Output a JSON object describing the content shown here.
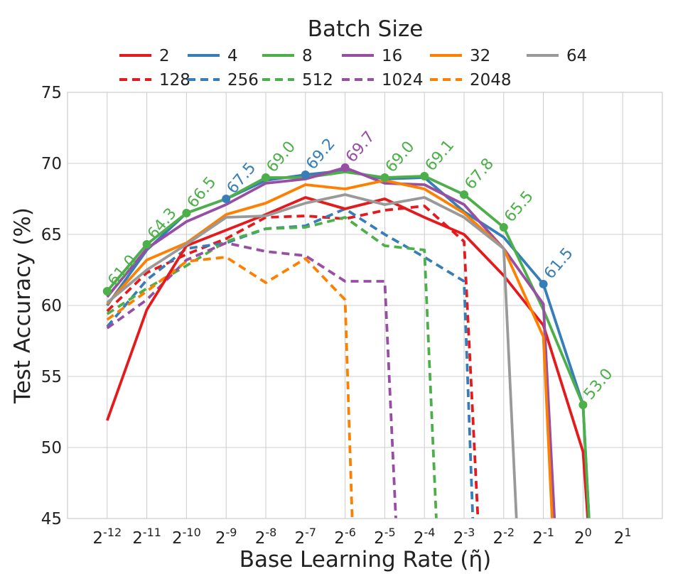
{
  "chart_data": {
    "type": "line",
    "title": "",
    "xlabel": "Base Learning Rate (η̃)",
    "ylabel": "Test Accuracy (%)",
    "ylim": [
      45,
      75
    ],
    "yticks": [
      45,
      50,
      55,
      60,
      65,
      70,
      75
    ],
    "xlim": [
      -13,
      2
    ],
    "x_note": "x values are log2 of the base learning rate",
    "xticks": [
      {
        "x": -12,
        "base": "2",
        "exp": "-12"
      },
      {
        "x": -11,
        "base": "2",
        "exp": "-11"
      },
      {
        "x": -10,
        "base": "2",
        "exp": "-10"
      },
      {
        "x": -9,
        "base": "2",
        "exp": "-9"
      },
      {
        "x": -8,
        "base": "2",
        "exp": "-8"
      },
      {
        "x": -7,
        "base": "2",
        "exp": "-7"
      },
      {
        "x": -6,
        "base": "2",
        "exp": "-6"
      },
      {
        "x": -5,
        "base": "2",
        "exp": "-5"
      },
      {
        "x": -4,
        "base": "2",
        "exp": "-4"
      },
      {
        "x": -3,
        "base": "2",
        "exp": "-3"
      },
      {
        "x": -2,
        "base": "2",
        "exp": "-2"
      },
      {
        "x": -1,
        "base": "2",
        "exp": "-1"
      },
      {
        "x": 0,
        "base": "2",
        "exp": "0"
      },
      {
        "x": 1,
        "base": "2",
        "exp": "1"
      }
    ],
    "grid": true,
    "legend": {
      "title": "Batch Size",
      "position": "top",
      "columns": 6
    },
    "series": [
      {
        "name": "2",
        "color": "#e41a1c",
        "dashed": false,
        "points": [
          [
            -12,
            51.9
          ],
          [
            -11,
            59.7
          ],
          [
            -10,
            64.2
          ],
          [
            -9,
            65.3
          ],
          [
            -8,
            66.4
          ],
          [
            -7,
            67.6
          ],
          [
            -6,
            66.8
          ],
          [
            -5,
            67.5
          ],
          [
            -4,
            66.2
          ],
          [
            -3,
            65.0
          ],
          [
            -2,
            62.1
          ],
          [
            -1,
            58.6
          ],
          [
            0,
            49.7
          ],
          [
            0.12,
            45
          ]
        ]
      },
      {
        "name": "4",
        "color": "#377eb8",
        "dashed": false,
        "points": [
          [
            -12,
            60.0
          ],
          [
            -11,
            63.9
          ],
          [
            -10,
            66.5
          ],
          [
            -9,
            67.5
          ],
          [
            -8,
            68.8
          ],
          [
            -7,
            69.2
          ],
          [
            -6,
            69.5
          ],
          [
            -5,
            68.9
          ],
          [
            -4,
            69.0
          ],
          [
            -3,
            66.6
          ],
          [
            -2,
            64.8
          ],
          [
            -1,
            61.5
          ],
          [
            0,
            53.0
          ],
          [
            0.15,
            45
          ]
        ],
        "markers": [
          {
            "x": -9,
            "label": "67.5"
          },
          {
            "x": -7,
            "label": "69.2"
          },
          {
            "x": -1,
            "label": "61.5"
          }
        ]
      },
      {
        "name": "8",
        "color": "#4daf4a",
        "dashed": false,
        "points": [
          [
            -12,
            61.0
          ],
          [
            -11,
            64.3
          ],
          [
            -10,
            66.5
          ],
          [
            -9,
            67.5
          ],
          [
            -8,
            69.0
          ],
          [
            -7,
            69.0
          ],
          [
            -6,
            69.4
          ],
          [
            -5,
            69.0
          ],
          [
            -4,
            69.1
          ],
          [
            -3,
            67.8
          ],
          [
            -2,
            65.5
          ],
          [
            -1,
            59.7
          ],
          [
            0,
            53.0
          ],
          [
            0.15,
            45
          ]
        ],
        "markers": [
          {
            "x": -12,
            "label": "61.0"
          },
          {
            "x": -11,
            "label": "64.3"
          },
          {
            "x": -10,
            "label": "66.5"
          },
          {
            "x": -8,
            "label": "69.0"
          },
          {
            "x": -5,
            "label": "69.0"
          },
          {
            "x": -4,
            "label": "69.1"
          },
          {
            "x": -3,
            "label": "67.8"
          },
          {
            "x": -2,
            "label": "65.5"
          },
          {
            "x": 0,
            "label": "53.0"
          }
        ]
      },
      {
        "name": "16",
        "color": "#984ea3",
        "dashed": false,
        "points": [
          [
            -12,
            60.6
          ],
          [
            -11,
            64.0
          ],
          [
            -10,
            65.9
          ],
          [
            -9,
            67.1
          ],
          [
            -8,
            68.6
          ],
          [
            -7,
            68.9
          ],
          [
            -6,
            69.7
          ],
          [
            -5,
            68.6
          ],
          [
            -4,
            68.5
          ],
          [
            -3,
            67.1
          ],
          [
            -2,
            64.0
          ],
          [
            -1,
            60.1
          ],
          [
            -0.72,
            45
          ]
        ],
        "markers": [
          {
            "x": -6,
            "label": "69.7"
          }
        ]
      },
      {
        "name": "32",
        "color": "#ff7f00",
        "dashed": false,
        "points": [
          [
            -12,
            60.1
          ],
          [
            -11,
            63.2
          ],
          [
            -10,
            64.4
          ],
          [
            -9,
            66.4
          ],
          [
            -8,
            67.2
          ],
          [
            -7,
            68.5
          ],
          [
            -6,
            68.2
          ],
          [
            -5,
            68.8
          ],
          [
            -4,
            68.2
          ],
          [
            -3,
            66.5
          ],
          [
            -2,
            64.0
          ],
          [
            -1,
            57.8
          ],
          [
            -0.78,
            45
          ]
        ]
      },
      {
        "name": "64",
        "color": "#999999",
        "dashed": false,
        "points": [
          [
            -12,
            60.2
          ],
          [
            -11,
            62.5
          ],
          [
            -10,
            64.3
          ],
          [
            -9,
            66.2
          ],
          [
            -8,
            66.3
          ],
          [
            -7,
            67.2
          ],
          [
            -6,
            67.8
          ],
          [
            -5,
            67.1
          ],
          [
            -4,
            67.6
          ],
          [
            -3,
            66.2
          ],
          [
            -2,
            64.0
          ],
          [
            -1.68,
            45
          ]
        ]
      },
      {
        "name": "128",
        "color": "#e41a1c",
        "dashed": true,
        "points": [
          [
            -12,
            59.6
          ],
          [
            -11,
            62.3
          ],
          [
            -10,
            63.6
          ],
          [
            -9,
            64.7
          ],
          [
            -8,
            66.2
          ],
          [
            -7,
            66.3
          ],
          [
            -6,
            66.1
          ],
          [
            -5,
            66.7
          ],
          [
            -4,
            67.0
          ],
          [
            -3,
            64.5
          ],
          [
            -2.65,
            45
          ]
        ]
      },
      {
        "name": "256",
        "color": "#377eb8",
        "dashed": true,
        "points": [
          [
            -12,
            58.5
          ],
          [
            -11,
            61.8
          ],
          [
            -10,
            64.0
          ],
          [
            -9,
            64.4
          ],
          [
            -8,
            65.4
          ],
          [
            -7,
            65.6
          ],
          [
            -6,
            66.8
          ],
          [
            -5,
            65.0
          ],
          [
            -4,
            63.4
          ],
          [
            -3,
            61.7
          ],
          [
            -2.78,
            45
          ]
        ]
      },
      {
        "name": "512",
        "color": "#4daf4a",
        "dashed": true,
        "points": [
          [
            -12,
            59.4
          ],
          [
            -11,
            61.2
          ],
          [
            -10,
            62.8
          ],
          [
            -9,
            64.5
          ],
          [
            -8,
            65.4
          ],
          [
            -7,
            65.5
          ],
          [
            -6,
            66.2
          ],
          [
            -5,
            64.2
          ],
          [
            -4,
            63.9
          ],
          [
            -3.7,
            45
          ]
        ]
      },
      {
        "name": "1024",
        "color": "#984ea3",
        "dashed": true,
        "points": [
          [
            -12,
            58.4
          ],
          [
            -11,
            60.4
          ],
          [
            -10,
            63.2
          ],
          [
            -9,
            64.4
          ],
          [
            -8,
            63.8
          ],
          [
            -7,
            63.5
          ],
          [
            -6,
            61.7
          ],
          [
            -5,
            61.7
          ],
          [
            -4.72,
            45
          ]
        ]
      },
      {
        "name": "2048",
        "color": "#ff7f00",
        "dashed": true,
        "points": [
          [
            -12,
            59.0
          ],
          [
            -11,
            61.0
          ],
          [
            -10,
            63.1
          ],
          [
            -9,
            63.4
          ],
          [
            -8,
            61.6
          ],
          [
            -7,
            63.3
          ],
          [
            -6,
            60.4
          ],
          [
            -5.82,
            45
          ]
        ]
      }
    ]
  }
}
